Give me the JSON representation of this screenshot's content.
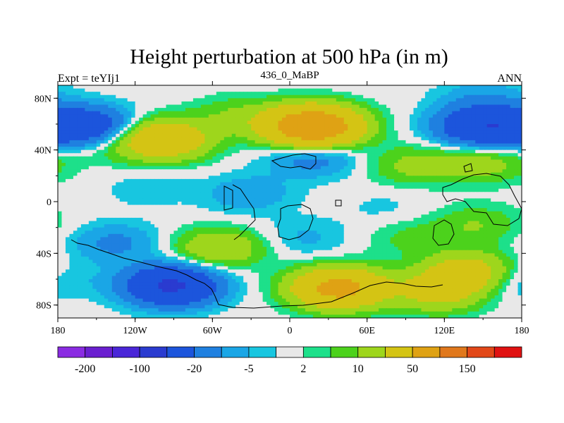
{
  "chart_data": {
    "type": "heatmap",
    "title": "Height perturbation at 500 hPa (in m)",
    "left_label": "Expt = teYIj1",
    "center_label": "436_0_MaBP",
    "right_label": "ANN",
    "x_ticks": [
      {
        "value": -180,
        "label": "180"
      },
      {
        "value": -120,
        "label": "120W"
      },
      {
        "value": -60,
        "label": "60W"
      },
      {
        "value": 0,
        "label": "0"
      },
      {
        "value": 60,
        "label": "60E"
      },
      {
        "value": 120,
        "label": "120E"
      },
      {
        "value": 180,
        "label": "180"
      }
    ],
    "y_ticks": [
      {
        "value": 80,
        "label": "80N"
      },
      {
        "value": 40,
        "label": "40N"
      },
      {
        "value": 0,
        "label": "0"
      },
      {
        "value": -40,
        "label": "40S"
      },
      {
        "value": -80,
        "label": "80S"
      }
    ],
    "xlim": [
      -180,
      180
    ],
    "ylim": [
      -90,
      90
    ],
    "colorbar": {
      "levels": [
        -200,
        -150,
        -100,
        -50,
        -20,
        -10,
        -5,
        -2,
        2,
        5,
        10,
        20,
        50,
        100,
        150,
        200
      ],
      "colors": [
        "#8a2be2",
        "#6a1fd0",
        "#4a26d8",
        "#2a3bd0",
        "#1c55dc",
        "#1f80e0",
        "#1aa6e6",
        "#18c6e0",
        "#e8e8e8",
        "#1de08a",
        "#4cd21c",
        "#9ed61c",
        "#d4c414",
        "#dfa214",
        "#e0781c",
        "#e24818",
        "#e01212"
      ],
      "labels": [
        {
          "level": -200,
          "label": "-200"
        },
        {
          "level": -100,
          "label": "-100"
        },
        {
          "level": -20,
          "label": "-20"
        },
        {
          "level": -5,
          "label": "-5"
        },
        {
          "level": 2,
          "label": "2"
        },
        {
          "level": 10,
          "label": "10"
        },
        {
          "level": 50,
          "label": "50"
        },
        {
          "level": 150,
          "label": "150"
        }
      ]
    },
    "anomaly_centers": [
      {
        "lon": -158,
        "lat": 58,
        "value": -38
      },
      {
        "lon": -110,
        "lat": 10,
        "value": -4
      },
      {
        "lon": -92,
        "lat": -65,
        "value": -55
      },
      {
        "lon": -135,
        "lat": -32,
        "value": -12
      },
      {
        "lon": -98,
        "lat": 48,
        "value": 42
      },
      {
        "lon": -142,
        "lat": 44,
        "value": 6
      },
      {
        "lon": -40,
        "lat": 66,
        "value": 10
      },
      {
        "lon": 18,
        "lat": 58,
        "value": 90
      },
      {
        "lon": 18,
        "lat": 35,
        "value": -16
      },
      {
        "lon": -32,
        "lat": 6,
        "value": -9
      },
      {
        "lon": -55,
        "lat": -36,
        "value": 20
      },
      {
        "lon": 12,
        "lat": -28,
        "value": -6
      },
      {
        "lon": 38,
        "lat": -67,
        "value": 62
      },
      {
        "lon": 115,
        "lat": -70,
        "value": 25
      },
      {
        "lon": 95,
        "lat": 28,
        "value": 12
      },
      {
        "lon": 150,
        "lat": 58,
        "value": -45
      },
      {
        "lon": 150,
        "lat": 30,
        "value": 14
      },
      {
        "lon": 168,
        "lat": -60,
        "value": -12
      },
      {
        "lon": 140,
        "lat": -55,
        "value": 35
      },
      {
        "lon": 145,
        "lat": -18,
        "value": 10
      },
      {
        "lon": 92,
        "lat": -28,
        "value": 6
      },
      {
        "lon": 150,
        "lat": 80,
        "value": -8
      },
      {
        "lon": 75,
        "lat": -5,
        "value": -3
      }
    ]
  }
}
